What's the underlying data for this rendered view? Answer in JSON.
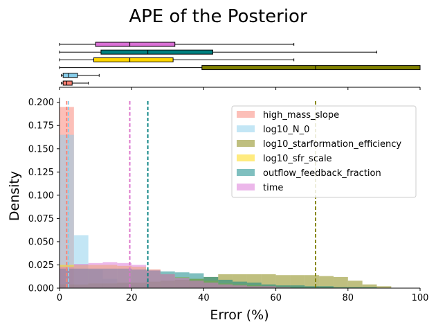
{
  "chart_data": {
    "type": "histogram",
    "title": "APE of the Posterior",
    "xlabel": "Error (%)",
    "ylabel": "Density",
    "xlim": [
      0,
      100
    ],
    "ylim": [
      0,
      0.205
    ],
    "x_ticks": [
      0,
      20,
      40,
      60,
      80,
      100
    ],
    "y_ticks": [
      0.0,
      0.025,
      0.05,
      0.075,
      0.1,
      0.125,
      0.15,
      0.175,
      0.2
    ],
    "y_tick_labels": [
      "0.000",
      "0.025",
      "0.050",
      "0.075",
      "0.100",
      "0.125",
      "0.150",
      "0.175",
      "0.200"
    ],
    "legend_position": "upper right",
    "series": [
      {
        "name": "high_mass_slope",
        "color": "#fa8072",
        "median": 2.0,
        "box": {
          "whisker_low": 0.5,
          "q1": 1.0,
          "median": 2.0,
          "q3": 3.5,
          "whisker_high": 8.0
        },
        "bins": [
          [
            0,
            4,
            0.195
          ]
        ]
      },
      {
        "name": "log10_N_0",
        "color": "#87ceeb",
        "median": 2.5,
        "box": {
          "whisker_low": 0.5,
          "q1": 1.0,
          "median": 2.5,
          "q3": 5.0,
          "whisker_high": 11.0
        },
        "bins": [
          [
            0,
            4,
            0.165
          ],
          [
            4,
            8,
            0.057
          ],
          [
            8,
            12,
            0.02
          ],
          [
            12,
            16,
            0.01
          ],
          [
            16,
            20,
            0.005
          ],
          [
            20,
            24,
            0.003
          ]
        ]
      },
      {
        "name": "log10_starformation_efficiency",
        "color": "#808000",
        "median": 71.0,
        "box": {
          "whisker_low": 0.0,
          "q1": 39.5,
          "median": 71.0,
          "q3": 100.0,
          "whisker_high": 100.0
        },
        "bins": [
          [
            0,
            4,
            0.004
          ],
          [
            4,
            8,
            0.004
          ],
          [
            8,
            12,
            0.005
          ],
          [
            12,
            16,
            0.005
          ],
          [
            16,
            20,
            0.006
          ],
          [
            20,
            24,
            0.006
          ],
          [
            24,
            28,
            0.007
          ],
          [
            28,
            32,
            0.008
          ],
          [
            32,
            36,
            0.009
          ],
          [
            36,
            40,
            0.01
          ],
          [
            40,
            44,
            0.012
          ],
          [
            44,
            48,
            0.015
          ],
          [
            48,
            52,
            0.015
          ],
          [
            52,
            56,
            0.015
          ],
          [
            56,
            60,
            0.015
          ],
          [
            60,
            64,
            0.014
          ],
          [
            64,
            68,
            0.014
          ],
          [
            68,
            72,
            0.014
          ],
          [
            72,
            76,
            0.013
          ],
          [
            76,
            80,
            0.012
          ],
          [
            80,
            84,
            0.008
          ],
          [
            84,
            88,
            0.004
          ],
          [
            88,
            92,
            0.002
          ]
        ]
      },
      {
        "name": "log10_sfr_scale",
        "color": "#ffd700",
        "median": 19.5,
        "box": {
          "whisker_low": 0.0,
          "q1": 9.5,
          "median": 19.5,
          "q3": 31.5,
          "whisker_high": 65.0
        },
        "bins": [
          [
            0,
            4,
            0.025
          ],
          [
            4,
            8,
            0.025
          ],
          [
            8,
            12,
            0.025
          ],
          [
            12,
            16,
            0.025
          ],
          [
            16,
            20,
            0.024
          ],
          [
            20,
            24,
            0.023
          ],
          [
            24,
            28,
            0.02
          ],
          [
            28,
            32,
            0.015
          ],
          [
            32,
            36,
            0.012
          ],
          [
            36,
            40,
            0.01
          ],
          [
            40,
            44,
            0.008
          ],
          [
            44,
            48,
            0.005
          ],
          [
            48,
            52,
            0.004
          ],
          [
            52,
            56,
            0.003
          ],
          [
            56,
            60,
            0.002
          ],
          [
            60,
            64,
            0.001
          ]
        ]
      },
      {
        "name": "outflow_feedback_fraction",
        "color": "#008080",
        "median": 24.5,
        "box": {
          "whisker_low": 0.0,
          "q1": 11.5,
          "median": 24.5,
          "q3": 42.5,
          "whisker_high": 88.0
        },
        "bins": [
          [
            0,
            4,
            0.021
          ],
          [
            4,
            8,
            0.021
          ],
          [
            8,
            12,
            0.021
          ],
          [
            12,
            16,
            0.021
          ],
          [
            16,
            20,
            0.021
          ],
          [
            20,
            24,
            0.02
          ],
          [
            24,
            28,
            0.019
          ],
          [
            28,
            32,
            0.018
          ],
          [
            32,
            36,
            0.017
          ],
          [
            36,
            40,
            0.016
          ],
          [
            40,
            44,
            0.012
          ],
          [
            44,
            48,
            0.009
          ],
          [
            48,
            52,
            0.007
          ],
          [
            52,
            56,
            0.006
          ],
          [
            56,
            60,
            0.004
          ],
          [
            60,
            64,
            0.003
          ],
          [
            64,
            68,
            0.003
          ],
          [
            68,
            72,
            0.002
          ],
          [
            72,
            76,
            0.002
          ],
          [
            76,
            80,
            0.001
          ],
          [
            80,
            84,
            0.001
          ],
          [
            84,
            88,
            0.001
          ]
        ]
      },
      {
        "name": "time",
        "color": "#da70d6",
        "median": 19.5,
        "box": {
          "whisker_low": 0.0,
          "q1": 10.0,
          "median": 19.5,
          "q3": 32.0,
          "whisker_high": 65.0
        },
        "bins": [
          [
            0,
            4,
            0.023
          ],
          [
            4,
            8,
            0.026
          ],
          [
            8,
            12,
            0.027
          ],
          [
            12,
            16,
            0.028
          ],
          [
            16,
            20,
            0.027
          ],
          [
            20,
            24,
            0.025
          ],
          [
            24,
            28,
            0.02
          ],
          [
            28,
            32,
            0.015
          ],
          [
            32,
            36,
            0.011
          ],
          [
            36,
            40,
            0.008
          ],
          [
            40,
            44,
            0.006
          ],
          [
            44,
            48,
            0.004
          ],
          [
            48,
            52,
            0.003
          ],
          [
            52,
            56,
            0.002
          ],
          [
            56,
            60,
            0.002
          ],
          [
            60,
            64,
            0.001
          ]
        ]
      }
    ]
  }
}
